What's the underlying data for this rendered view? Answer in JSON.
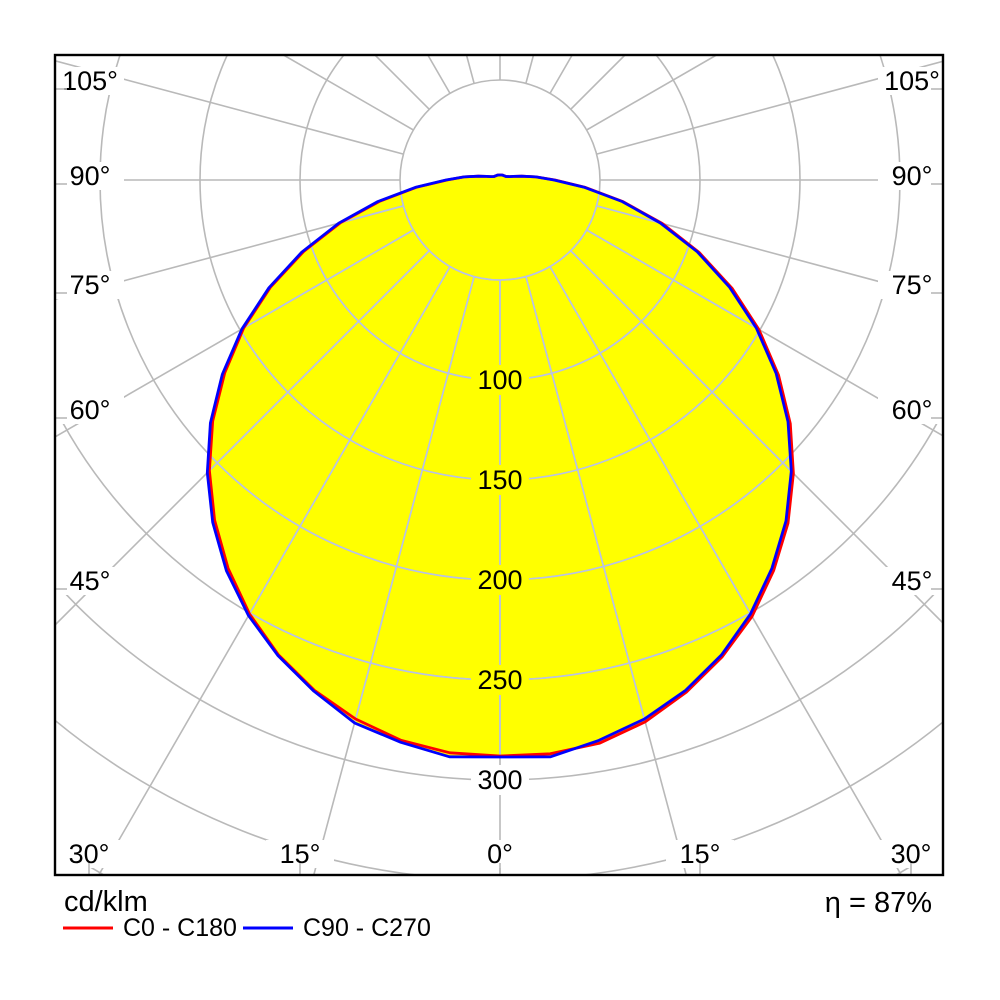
{
  "chart_data": {
    "type": "polar-intensity-distribution",
    "units": "cd/klm",
    "efficiency": "η = 87%",
    "angle_labels_left": [
      "105°",
      "90°",
      "75°",
      "60°",
      "45°"
    ],
    "angle_labels_right": [
      "105°",
      "90°",
      "75°",
      "60°",
      "45°"
    ],
    "angle_labels_bottom": [
      "30°",
      "15°",
      "0°",
      "15°",
      "30°"
    ],
    "radial_tick_labels": [
      "100",
      "150",
      "200",
      "250",
      "300"
    ],
    "radial_rings_cdklm": [
      50,
      100,
      150,
      200,
      250,
      300,
      350,
      400
    ],
    "ray_step_deg": 15,
    "gamma_angles_deg": [
      -90,
      -85,
      -80,
      -75,
      -70,
      -65,
      -60,
      -55,
      -50,
      -45,
      -40,
      -35,
      -30,
      -25,
      -20,
      -15,
      -10,
      -5,
      0,
      5,
      10,
      15,
      20,
      25,
      30,
      35,
      40,
      45,
      50,
      55,
      60,
      65,
      70,
      75,
      80,
      85,
      90
    ],
    "series": [
      {
        "name": "C0 - C180",
        "color": "#ff0000",
        "values": [
          26.5,
          42,
          61,
          82.5,
          104.5,
          126.5,
          148,
          168,
          187.5,
          205.5,
          222,
          237,
          250.5,
          262,
          271.5,
          279,
          284.5,
          287.5,
          288,
          288,
          286,
          280.5,
          272.5,
          263,
          252,
          238.5,
          224,
          207.5,
          189.5,
          170,
          149.5,
          128,
          106,
          84,
          62.5,
          43,
          27.5
        ]
      },
      {
        "name": "C90 - C270",
        "color": "#0000ff",
        "values": [
          27,
          42.5,
          62,
          83.5,
          105.5,
          127.5,
          149,
          169.5,
          189,
          207,
          223.5,
          238.5,
          251.5,
          262.5,
          272,
          281,
          285.5,
          289.5,
          288.5,
          289.5,
          284.5,
          279,
          271.5,
          262,
          250.5,
          237,
          222.5,
          206,
          188,
          168.5,
          148,
          126.5,
          105,
          83,
          62,
          42.5,
          27
        ]
      }
    ],
    "closure_above_90deg": [
      [
        95,
        18
      ],
      [
        100,
        11
      ],
      [
        105,
        7
      ],
      [
        110,
        5
      ],
      [
        120,
        3.5
      ],
      [
        135,
        3
      ],
      [
        150,
        2.8
      ],
      [
        165,
        2.6
      ],
      [
        180,
        2.5
      ]
    ],
    "fill_color": "#ffff00",
    "grid_color": "#b9b9b9",
    "grid_color_over_fill": "#b9c3e6",
    "frame_color": "#000000"
  }
}
